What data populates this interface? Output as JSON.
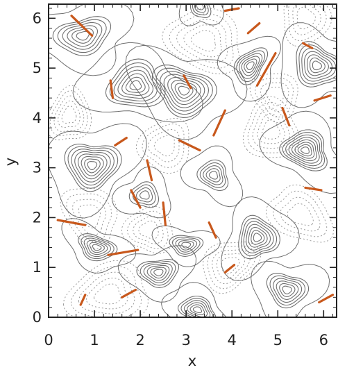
{
  "chart_data": {
    "type": "contour",
    "xlabel": "x",
    "ylabel": "y",
    "xlim": [
      0,
      6.283
    ],
    "ylim": [
      0,
      6.283
    ],
    "x_ticks": [
      "0",
      "1",
      "2",
      "3",
      "4",
      "5",
      "6"
    ],
    "y_ticks": [
      "0",
      "1",
      "2",
      "3",
      "4",
      "5",
      "6"
    ],
    "minor_ticks": true,
    "grid": false,
    "colors": {
      "solid_contour": "#6f6f6f",
      "dashed_contour": "#9a9a9a",
      "highlight": "#c8581c",
      "frame": "#222222"
    },
    "closed_contour_centers": [
      {
        "x": 0.75,
        "y": 5.65,
        "rings": 6
      },
      {
        "x": 1.9,
        "y": 4.65,
        "rings": 7
      },
      {
        "x": 2.95,
        "y": 4.55,
        "rings": 8
      },
      {
        "x": 4.4,
        "y": 5.05,
        "rings": 6
      },
      {
        "x": 5.85,
        "y": 5.05,
        "rings": 7
      },
      {
        "x": 0.95,
        "y": 3.05,
        "rings": 8
      },
      {
        "x": 3.6,
        "y": 2.85,
        "rings": 5
      },
      {
        "x": 2.1,
        "y": 2.45,
        "rings": 4
      },
      {
        "x": 5.6,
        "y": 3.35,
        "rings": 8
      },
      {
        "x": 4.55,
        "y": 1.6,
        "rings": 7
      },
      {
        "x": 3.0,
        "y": 1.45,
        "rings": 5
      },
      {
        "x": 1.05,
        "y": 1.4,
        "rings": 6
      },
      {
        "x": 2.4,
        "y": 0.9,
        "rings": 6
      },
      {
        "x": 3.25,
        "y": 0.15,
        "rings": 6
      },
      {
        "x": 5.2,
        "y": 0.55,
        "rings": 6
      },
      {
        "x": 3.3,
        "y": 6.25,
        "rings": 4
      }
    ],
    "dashed_contour_centers": [
      {
        "x": 3.4,
        "y": 5.55,
        "rings": 5
      },
      {
        "x": 0.45,
        "y": 4.05,
        "rings": 5
      },
      {
        "x": 2.55,
        "y": 3.45,
        "rings": 4
      },
      {
        "x": 4.85,
        "y": 3.75,
        "rings": 5
      },
      {
        "x": 0.9,
        "y": 2.05,
        "rings": 4
      },
      {
        "x": 2.2,
        "y": 1.75,
        "rings": 4
      },
      {
        "x": 3.95,
        "y": 1.05,
        "rings": 5
      },
      {
        "x": 5.5,
        "y": 2.05,
        "rings": 4
      },
      {
        "x": 1.3,
        "y": 0.45,
        "rings": 5
      },
      {
        "x": 5.6,
        "y": 6.0,
        "rings": 4
      },
      {
        "x": 4.95,
        "y": 4.45,
        "rings": 4
      }
    ],
    "current_sheets": [
      {
        "x0": 0.5,
        "y0": 6.05,
        "x1": 0.95,
        "y1": 5.65
      },
      {
        "x0": 1.35,
        "y0": 4.75,
        "x1": 1.4,
        "y1": 4.4
      },
      {
        "x0": 2.95,
        "y0": 4.85,
        "x1": 3.1,
        "y1": 4.6
      },
      {
        "x0": 4.55,
        "y0": 4.65,
        "x1": 4.95,
        "y1": 5.3
      },
      {
        "x0": 3.6,
        "y0": 3.65,
        "x1": 3.85,
        "y1": 4.15
      },
      {
        "x0": 2.85,
        "y0": 3.55,
        "x1": 3.3,
        "y1": 3.35
      },
      {
        "x0": 1.45,
        "y0": 3.45,
        "x1": 1.7,
        "y1": 3.6
      },
      {
        "x0": 2.15,
        "y0": 3.15,
        "x1": 2.25,
        "y1": 2.75
      },
      {
        "x0": 5.1,
        "y0": 4.2,
        "x1": 5.25,
        "y1": 3.85
      },
      {
        "x0": 5.8,
        "y0": 4.35,
        "x1": 6.15,
        "y1": 4.45
      },
      {
        "x0": 1.8,
        "y0": 2.55,
        "x1": 2.0,
        "y1": 2.2
      },
      {
        "x0": 2.5,
        "y0": 2.3,
        "x1": 2.55,
        "y1": 1.85
      },
      {
        "x0": 0.2,
        "y0": 1.95,
        "x1": 0.8,
        "y1": 1.85
      },
      {
        "x0": 1.3,
        "y0": 1.25,
        "x1": 1.95,
        "y1": 1.35
      },
      {
        "x0": 3.5,
        "y0": 1.9,
        "x1": 3.65,
        "y1": 1.6
      },
      {
        "x0": 1.6,
        "y0": 0.4,
        "x1": 1.9,
        "y1": 0.55
      },
      {
        "x0": 3.85,
        "y0": 0.9,
        "x1": 4.05,
        "y1": 1.05
      },
      {
        "x0": 5.6,
        "y0": 2.6,
        "x1": 5.95,
        "y1": 2.55
      },
      {
        "x0": 5.9,
        "y0": 0.3,
        "x1": 6.2,
        "y1": 0.45
      },
      {
        "x0": 0.7,
        "y0": 0.25,
        "x1": 0.8,
        "y1": 0.45
      },
      {
        "x0": 4.35,
        "y0": 5.7,
        "x1": 4.6,
        "y1": 5.9
      },
      {
        "x0": 5.55,
        "y0": 5.5,
        "x1": 5.75,
        "y1": 5.4
      },
      {
        "x0": 3.85,
        "y0": 6.15,
        "x1": 4.15,
        "y1": 6.2
      }
    ]
  }
}
